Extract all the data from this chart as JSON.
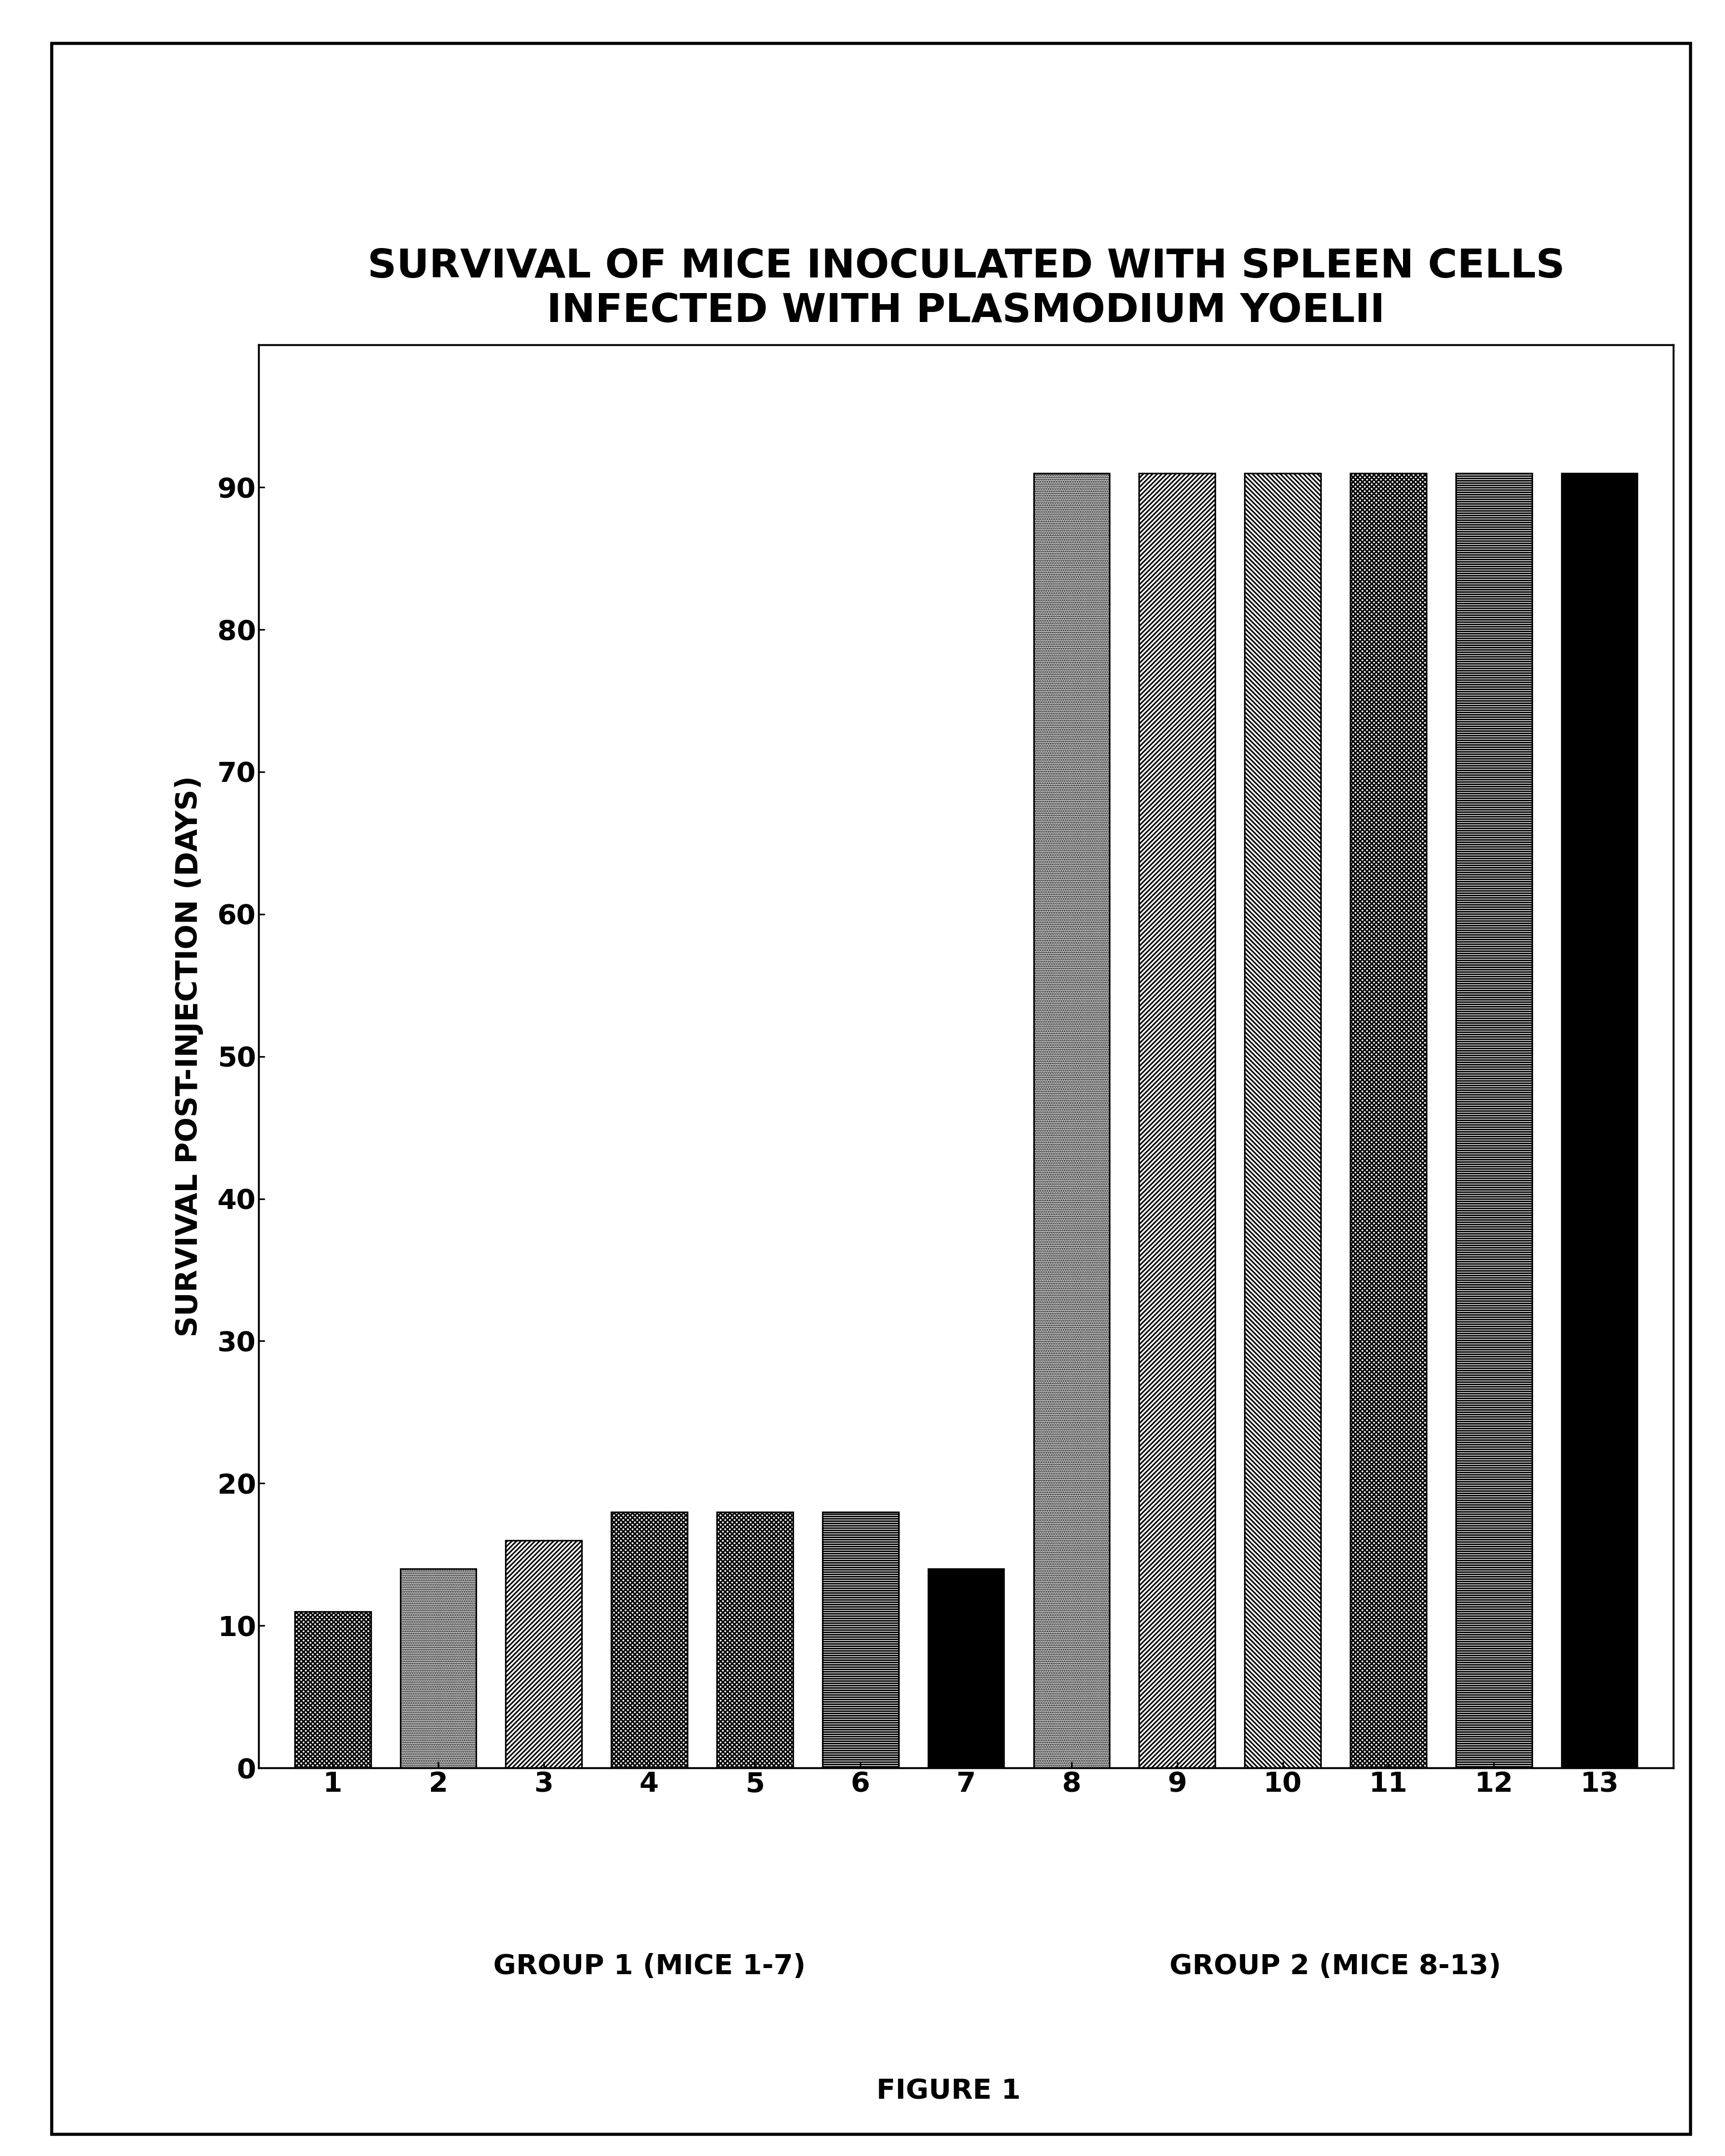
{
  "title_line1": "SURVIVAL OF MICE INOCULATED WITH SPLEEN CELLS",
  "title_line2": "INFECTED WITH PLASMODIUM YOELII",
  "ylabel": "SURVIVAL POST-INJECTION (DAYS)",
  "xlabel_group1": "GROUP 1 (MICE 1-7)",
  "xlabel_group2": "GROUP 2 (MICE 8-13)",
  "figure_label": "FIGURE 1",
  "bars": [
    {
      "x": 1,
      "value": 11,
      "hatch": "xxxx",
      "facecolor": "white",
      "edgecolor": "black",
      "group": 1
    },
    {
      "x": 2,
      "value": 14,
      "hatch": "....",
      "facecolor": "white",
      "edgecolor": "black",
      "group": 1
    },
    {
      "x": 3,
      "value": 16,
      "hatch": "////",
      "facecolor": "white",
      "edgecolor": "black",
      "group": 1
    },
    {
      "x": 4,
      "value": 18,
      "hatch": "xxxx",
      "facecolor": "white",
      "edgecolor": "black",
      "group": 1
    },
    {
      "x": 5,
      "value": 18,
      "hatch": "xxxx",
      "facecolor": "white",
      "edgecolor": "black",
      "group": 1
    },
    {
      "x": 6,
      "value": 18,
      "hatch": "----",
      "facecolor": "white",
      "edgecolor": "black",
      "group": 1
    },
    {
      "x": 7,
      "value": 14,
      "hatch": "",
      "facecolor": "black",
      "edgecolor": "black",
      "group": 1
    },
    {
      "x": 8,
      "value": 91,
      "hatch": "....",
      "facecolor": "white",
      "edgecolor": "black",
      "group": 2
    },
    {
      "x": 9,
      "value": 91,
      "hatch": "////",
      "facecolor": "white",
      "edgecolor": "black",
      "group": 2
    },
    {
      "x": 10,
      "value": 91,
      "hatch": "\\\\\\\\",
      "facecolor": "white",
      "edgecolor": "black",
      "group": 2
    },
    {
      "x": 11,
      "value": 91,
      "hatch": "xxxx",
      "facecolor": "white",
      "edgecolor": "black",
      "group": 2
    },
    {
      "x": 12,
      "value": 91,
      "hatch": "----",
      "facecolor": "white",
      "edgecolor": "black",
      "group": 2
    },
    {
      "x": 13,
      "value": 91,
      "hatch": "",
      "facecolor": "black",
      "edgecolor": "black",
      "group": 2
    }
  ],
  "ylim": [
    0,
    100
  ],
  "yticks": [
    0,
    10,
    20,
    30,
    40,
    50,
    60,
    70,
    80,
    90
  ],
  "bar_width": 0.72,
  "background_color": "white",
  "title_fontsize": 52,
  "axis_label_fontsize": 38,
  "tick_fontsize": 36,
  "group_label_fontsize": 36,
  "figure_label_fontsize": 36
}
